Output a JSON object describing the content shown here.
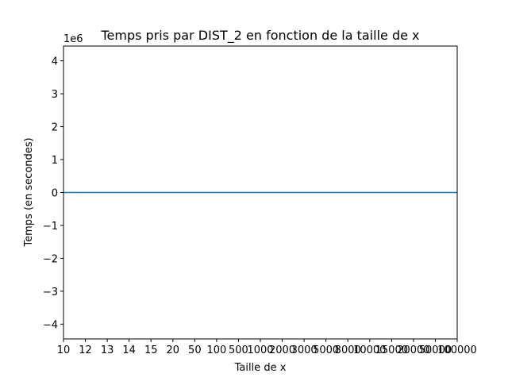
{
  "chart_data": {
    "type": "line",
    "title": "Temps pris par DIST_2 en fonction de la taille de x",
    "xlabel": "Taille de x",
    "ylabel": "Temps (en secondes)",
    "y_offset_label": "1e6",
    "x_scale": "categorical",
    "categories": [
      "10",
      "12",
      "13",
      "14",
      "15",
      "20",
      "50",
      "100",
      "500",
      "1000",
      "2000",
      "3000",
      "5000",
      "8000",
      "10000",
      "15000",
      "20000",
      "50000",
      "100000"
    ],
    "ylim": [
      -4.45,
      4.45
    ],
    "y_ticks": [
      -4,
      -3,
      -2,
      -1,
      0,
      1,
      2,
      3,
      4
    ],
    "y_tick_labels": [
      "−4",
      "−3",
      "−2",
      "−1",
      "0",
      "1",
      "2",
      "3",
      "4"
    ],
    "grid": false,
    "line_color": "#1f77b4",
    "series": [
      {
        "values": [
          0,
          0,
          0,
          0,
          0,
          0,
          0,
          0,
          0,
          0,
          0,
          0,
          0,
          0,
          0,
          0,
          0,
          0,
          0
        ]
      }
    ]
  }
}
